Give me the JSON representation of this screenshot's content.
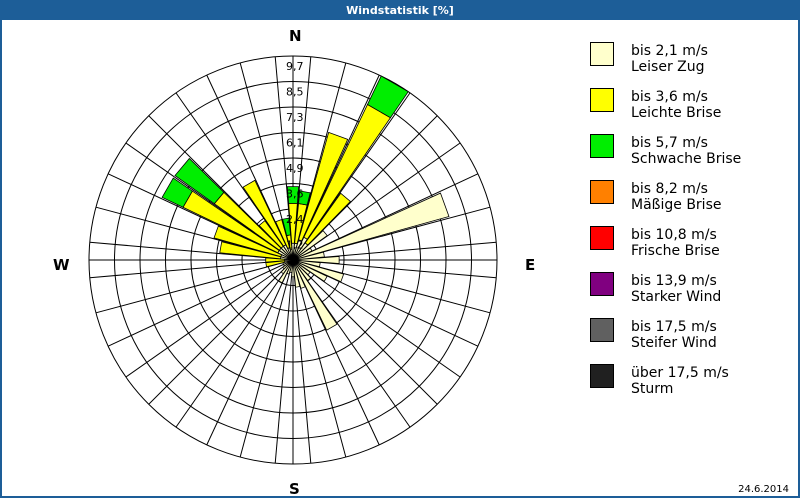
{
  "window": {
    "title": "Windstatistik [%]",
    "date": "24.6.2014"
  },
  "compass": {
    "N": "N",
    "E": "E",
    "S": "S",
    "W": "W"
  },
  "legend": [
    {
      "range": "bis 2,1 m/s",
      "name": "Leiser Zug",
      "color": "#ffffcc"
    },
    {
      "range": "bis 3,6 m/s",
      "name": "Leichte Brise",
      "color": "#ffff00"
    },
    {
      "range": "bis 5,7 m/s",
      "name": "Schwache Brise",
      "color": "#00ee00"
    },
    {
      "range": "bis 8,2 m/s",
      "name": "Mäßige Brise",
      "color": "#ff8000"
    },
    {
      "range": "bis 10,8 m/s",
      "name": "Frische Brise",
      "color": "#ff0000"
    },
    {
      "range": "bis 13,9 m/s",
      "name": "Starker Wind",
      "color": "#800080"
    },
    {
      "range": "bis 17,5 m/s",
      "name": "Steifer Wind",
      "color": "#606060"
    },
    {
      "range": "über 17,5 m/s",
      "name": "Sturm",
      "color": "#202020"
    }
  ],
  "chart_data": {
    "type": "wind-rose",
    "title": "Windstatistik [%]",
    "radial_ticks": [
      "1,2",
      "2,4",
      "3,6",
      "4,9",
      "6,1",
      "7,3",
      "8,5",
      "9,7"
    ],
    "radial_max": 9.7,
    "sector_width_deg": 10,
    "series": [
      {
        "name": "bis 2,1 m/s",
        "color": "#ffffcc"
      },
      {
        "name": "bis 3,6 m/s",
        "color": "#ffff00"
      },
      {
        "name": "bis 5,7 m/s",
        "color": "#00ee00"
      }
    ],
    "sectors": [
      {
        "dir": 0,
        "stack": [
          0.8,
          2.7,
          3.5
        ]
      },
      {
        "dir": 10,
        "stack": [
          0.8,
          2.7,
          3.3
        ]
      },
      {
        "dir": 20,
        "stack": [
          1.0,
          6.3,
          6.3
        ]
      },
      {
        "dir": 30,
        "stack": [
          1.2,
          8.2,
          9.7
        ]
      },
      {
        "dir": 40,
        "stack": [
          1.0,
          3.9,
          3.9
        ]
      },
      {
        "dir": 50,
        "stack": [
          2.0,
          2.0,
          2.0
        ]
      },
      {
        "dir": 60,
        "stack": [
          1.0,
          1.0,
          1.0
        ]
      },
      {
        "dir": 70,
        "stack": [
          7.7,
          7.7,
          7.7
        ]
      },
      {
        "dir": 80,
        "stack": [
          1.5,
          1.5,
          1.5
        ]
      },
      {
        "dir": 90,
        "stack": [
          2.2,
          2.2,
          2.2
        ]
      },
      {
        "dir": 100,
        "stack": [
          1.3,
          1.3,
          1.3
        ]
      },
      {
        "dir": 110,
        "stack": [
          2.5,
          2.5,
          2.5
        ]
      },
      {
        "dir": 120,
        "stack": [
          1.8,
          1.8,
          1.8
        ]
      },
      {
        "dir": 130,
        "stack": [
          1.0,
          1.0,
          1.0
        ]
      },
      {
        "dir": 140,
        "stack": [
          1.2,
          1.2,
          1.2
        ]
      },
      {
        "dir": 150,
        "stack": [
          3.7,
          3.7,
          3.7
        ]
      },
      {
        "dir": 160,
        "stack": [
          1.4,
          1.4,
          1.4
        ]
      },
      {
        "dir": 170,
        "stack": [
          1.3,
          1.3,
          1.3
        ]
      },
      {
        "dir": 180,
        "stack": [
          0.8,
          0.8,
          0.8
        ]
      },
      {
        "dir": 190,
        "stack": [
          0.6,
          0.6,
          0.6
        ]
      },
      {
        "dir": 200,
        "stack": [
          0.7,
          0.7,
          0.7
        ]
      },
      {
        "dir": 210,
        "stack": [
          1.2,
          1.2,
          1.2
        ]
      },
      {
        "dir": 220,
        "stack": [
          0.8,
          0.8,
          0.8
        ]
      },
      {
        "dir": 230,
        "stack": [
          0.6,
          0.6,
          0.6
        ]
      },
      {
        "dir": 240,
        "stack": [
          0.5,
          0.5,
          0.5
        ]
      },
      {
        "dir": 250,
        "stack": [
          0.5,
          0.5,
          0.5
        ]
      },
      {
        "dir": 260,
        "stack": [
          0.4,
          1.3,
          1.3
        ]
      },
      {
        "dir": 270,
        "stack": [
          0.4,
          1.3,
          1.3
        ]
      },
      {
        "dir": 280,
        "stack": [
          0.6,
          3.5,
          3.5
        ]
      },
      {
        "dir": 290,
        "stack": [
          0.6,
          3.9,
          3.9
        ]
      },
      {
        "dir": 300,
        "stack": [
          0.8,
          5.8,
          6.9
        ]
      },
      {
        "dir": 310,
        "stack": [
          0.8,
          4.6,
          6.9
        ]
      },
      {
        "dir": 320,
        "stack": [
          0.8,
          2.3,
          2.3
        ]
      },
      {
        "dir": 330,
        "stack": [
          0.8,
          4.2,
          4.2
        ]
      },
      {
        "dir": 340,
        "stack": [
          0.6,
          2.0,
          2.0
        ]
      },
      {
        "dir": 350,
        "stack": [
          0.5,
          1.2,
          2.0
        ]
      }
    ]
  }
}
